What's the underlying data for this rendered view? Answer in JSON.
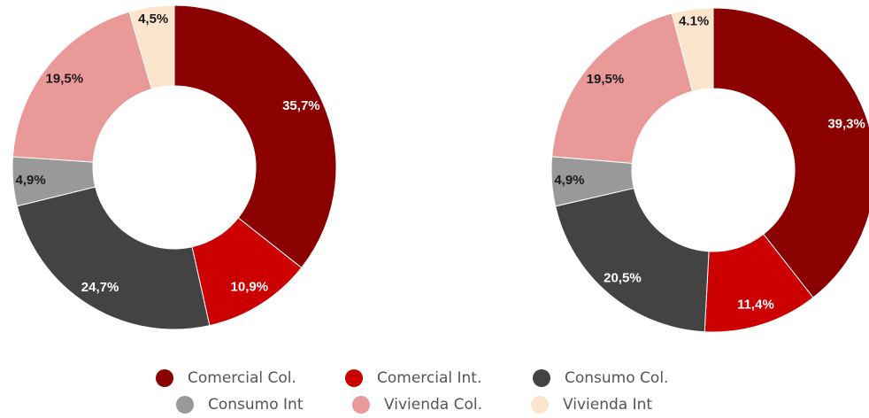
{
  "colors": {
    "comercial_col": "#8b0000",
    "comercial_int": "#cc0000",
    "consumo_col": "#434343",
    "consumo_int": "#999999",
    "vivienda_col": "#ea9999",
    "vivienda_int": "#fce5cd"
  },
  "chart_data": [
    {
      "type": "pie",
      "donut": true,
      "categories": [
        "Comercial Col.",
        "Comercial Int.",
        "Consumo Col.",
        "Consumo Int",
        "Vivienda Col.",
        "Vivienda Int"
      ],
      "values": [
        35.7,
        10.9,
        24.7,
        4.9,
        19.5,
        4.5
      ],
      "labels": [
        "35,7%",
        "10,9%",
        "24,7%",
        "4,9%",
        "19,5%",
        "4,5%"
      ]
    },
    {
      "type": "pie",
      "donut": true,
      "categories": [
        "Comercial Col.",
        "Comercial Int.",
        "Consumo Col.",
        "Consumo Int",
        "Vivienda Col.",
        "Vivienda Int"
      ],
      "values": [
        39.3,
        11.4,
        20.5,
        4.9,
        19.5,
        4.1
      ],
      "labels": [
        "39,3%",
        "11,4%",
        "20,5%",
        "4,9%",
        "19,5%",
        "4.1%"
      ]
    }
  ],
  "legend": {
    "items": [
      {
        "label": "Comercial Col.",
        "color": "#8b0000"
      },
      {
        "label": "Comercial Int.",
        "color": "#cc0000"
      },
      {
        "label": "Consumo Col.",
        "color": "#434343"
      },
      {
        "label": "Consumo Int",
        "color": "#999999"
      },
      {
        "label": "Vivienda Col.",
        "color": "#ea9999"
      },
      {
        "label": "Vivienda Int",
        "color": "#fce5cd"
      }
    ]
  }
}
